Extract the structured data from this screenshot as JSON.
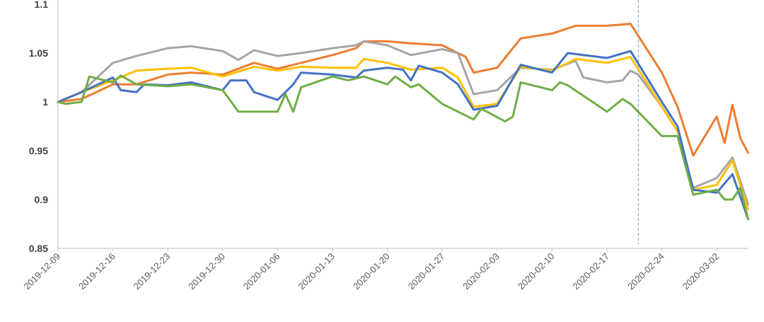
{
  "chart_data": {
    "type": "line",
    "title": "",
    "xlabel": "",
    "ylabel": "",
    "ylim": [
      0.85,
      1.1
    ],
    "y_ticks": [
      {
        "value": 1.1,
        "label": "1.1"
      },
      {
        "value": 1.05,
        "label": "1.05"
      },
      {
        "value": 1.0,
        "label": "1"
      },
      {
        "value": 0.95,
        "label": "0.95"
      },
      {
        "value": 0.9,
        "label": "0.9"
      },
      {
        "value": 0.85,
        "label": "0.85"
      }
    ],
    "x_tick_labels": [
      "2019-12-09",
      "2019-12-16",
      "2019-12-23",
      "2019-12-30",
      "2020-01-06",
      "2020-01-13",
      "2020-01-20",
      "2020-01-27",
      "2020-02-03",
      "2020-02-10",
      "2020-02-17",
      "2020-02-24",
      "2020-03-02"
    ],
    "vline_date": "2020-02-21",
    "grid": false,
    "legend": "none",
    "series": [
      {
        "color": "#ED7D31",
        "points": [
          [
            "2019-12-09",
            1.0
          ],
          [
            "2019-12-12",
            1.003
          ],
          [
            "2019-12-16",
            1.018
          ],
          [
            "2019-12-19",
            1.018
          ],
          [
            "2019-12-23",
            1.028
          ],
          [
            "2019-12-26",
            1.03
          ],
          [
            "2019-12-30",
            1.028
          ],
          [
            "2020-01-03",
            1.04
          ],
          [
            "2020-01-06",
            1.034
          ],
          [
            "2020-01-09",
            1.04
          ],
          [
            "2020-01-13",
            1.048
          ],
          [
            "2020-01-16",
            1.055
          ],
          [
            "2020-01-17",
            1.062
          ],
          [
            "2020-01-20",
            1.062
          ],
          [
            "2020-01-23",
            1.06
          ],
          [
            "2020-01-27",
            1.058
          ],
          [
            "2020-01-30",
            1.046
          ],
          [
            "2020-01-31",
            1.03
          ],
          [
            "2020-02-03",
            1.035
          ],
          [
            "2020-02-06",
            1.065
          ],
          [
            "2020-02-10",
            1.07
          ],
          [
            "2020-02-13",
            1.078
          ],
          [
            "2020-02-17",
            1.078
          ],
          [
            "2020-02-20",
            1.08
          ],
          [
            "2020-02-24",
            1.03
          ],
          [
            "2020-02-26",
            0.995
          ],
          [
            "2020-02-28",
            0.945
          ],
          [
            "2020-03-02",
            0.985
          ],
          [
            "2020-03-03",
            0.958
          ],
          [
            "2020-03-04",
            0.997
          ],
          [
            "2020-03-05",
            0.963
          ],
          [
            "2020-03-06",
            0.948
          ]
        ]
      },
      {
        "color": "#A5A5A5",
        "points": [
          [
            "2019-12-09",
            1.0
          ],
          [
            "2019-12-12",
            1.01
          ],
          [
            "2019-12-16",
            1.04
          ],
          [
            "2019-12-19",
            1.047
          ],
          [
            "2019-12-23",
            1.055
          ],
          [
            "2019-12-26",
            1.057
          ],
          [
            "2019-12-30",
            1.052
          ],
          [
            "2020-01-01",
            1.043
          ],
          [
            "2020-01-03",
            1.053
          ],
          [
            "2020-01-06",
            1.047
          ],
          [
            "2020-01-09",
            1.05
          ],
          [
            "2020-01-13",
            1.055
          ],
          [
            "2020-01-16",
            1.058
          ],
          [
            "2020-01-17",
            1.062
          ],
          [
            "2020-01-20",
            1.058
          ],
          [
            "2020-01-23",
            1.048
          ],
          [
            "2020-01-27",
            1.054
          ],
          [
            "2020-01-29",
            1.05
          ],
          [
            "2020-01-31",
            1.008
          ],
          [
            "2020-02-03",
            1.012
          ],
          [
            "2020-02-06",
            1.035
          ],
          [
            "2020-02-10",
            1.033
          ],
          [
            "2020-02-13",
            1.042
          ],
          [
            "2020-02-14",
            1.025
          ],
          [
            "2020-02-17",
            1.02
          ],
          [
            "2020-02-19",
            1.022
          ],
          [
            "2020-02-20",
            1.032
          ],
          [
            "2020-02-21",
            1.028
          ],
          [
            "2020-02-24",
            0.995
          ],
          [
            "2020-02-26",
            0.97
          ],
          [
            "2020-02-28",
            0.912
          ],
          [
            "2020-03-02",
            0.922
          ],
          [
            "2020-03-04",
            0.943
          ],
          [
            "2020-03-06",
            0.895
          ]
        ]
      },
      {
        "color": "#FFC000",
        "points": [
          [
            "2019-12-09",
            1.0
          ],
          [
            "2019-12-12",
            1.01
          ],
          [
            "2019-12-16",
            1.022
          ],
          [
            "2019-12-19",
            1.032
          ],
          [
            "2019-12-23",
            1.034
          ],
          [
            "2019-12-26",
            1.035
          ],
          [
            "2019-12-30",
            1.026
          ],
          [
            "2020-01-03",
            1.036
          ],
          [
            "2020-01-06",
            1.032
          ],
          [
            "2020-01-09",
            1.036
          ],
          [
            "2020-01-13",
            1.035
          ],
          [
            "2020-01-16",
            1.035
          ],
          [
            "2020-01-17",
            1.044
          ],
          [
            "2020-01-20",
            1.04
          ],
          [
            "2020-01-23",
            1.033
          ],
          [
            "2020-01-27",
            1.035
          ],
          [
            "2020-01-29",
            1.025
          ],
          [
            "2020-01-31",
            0.995
          ],
          [
            "2020-02-03",
            0.998
          ],
          [
            "2020-02-06",
            1.036
          ],
          [
            "2020-02-10",
            1.032
          ],
          [
            "2020-02-13",
            1.044
          ],
          [
            "2020-02-17",
            1.04
          ],
          [
            "2020-02-20",
            1.046
          ],
          [
            "2020-02-24",
            0.995
          ],
          [
            "2020-02-26",
            0.97
          ],
          [
            "2020-02-28",
            0.91
          ],
          [
            "2020-03-02",
            0.915
          ],
          [
            "2020-03-04",
            0.94
          ],
          [
            "2020-03-06",
            0.89
          ]
        ]
      },
      {
        "color": "#4472C4",
        "points": [
          [
            "2019-12-09",
            1.0
          ],
          [
            "2019-12-12",
            1.01
          ],
          [
            "2019-12-16",
            1.025
          ],
          [
            "2019-12-17",
            1.012
          ],
          [
            "2019-12-19",
            1.01
          ],
          [
            "2019-12-20",
            1.018
          ],
          [
            "2019-12-23",
            1.017
          ],
          [
            "2019-12-26",
            1.02
          ],
          [
            "2019-12-30",
            1.012
          ],
          [
            "2019-12-31",
            1.022
          ],
          [
            "2020-01-02",
            1.022
          ],
          [
            "2020-01-03",
            1.01
          ],
          [
            "2020-01-06",
            1.002
          ],
          [
            "2020-01-08",
            1.018
          ],
          [
            "2020-01-09",
            1.03
          ],
          [
            "2020-01-13",
            1.028
          ],
          [
            "2020-01-16",
            1.025
          ],
          [
            "2020-01-17",
            1.032
          ],
          [
            "2020-01-20",
            1.035
          ],
          [
            "2020-01-22",
            1.033
          ],
          [
            "2020-01-23",
            1.022
          ],
          [
            "2020-01-24",
            1.037
          ],
          [
            "2020-01-27",
            1.03
          ],
          [
            "2020-01-29",
            1.018
          ],
          [
            "2020-01-31",
            0.992
          ],
          [
            "2020-02-03",
            0.996
          ],
          [
            "2020-02-06",
            1.038
          ],
          [
            "2020-02-10",
            1.03
          ],
          [
            "2020-02-12",
            1.05
          ],
          [
            "2020-02-17",
            1.045
          ],
          [
            "2020-02-20",
            1.052
          ],
          [
            "2020-02-24",
            1.0
          ],
          [
            "2020-02-26",
            0.975
          ],
          [
            "2020-02-28",
            0.91
          ],
          [
            "2020-03-02",
            0.907
          ],
          [
            "2020-03-04",
            0.926
          ],
          [
            "2020-03-06",
            0.88
          ]
        ]
      },
      {
        "color": "#70AD47",
        "points": [
          [
            "2019-12-09",
            1.0
          ],
          [
            "2019-12-10",
            0.998
          ],
          [
            "2019-12-12",
            1.0
          ],
          [
            "2019-12-13",
            1.026
          ],
          [
            "2019-12-16",
            1.02
          ],
          [
            "2019-12-17",
            1.027
          ],
          [
            "2019-12-19",
            1.018
          ],
          [
            "2019-12-23",
            1.016
          ],
          [
            "2019-12-26",
            1.018
          ],
          [
            "2019-12-30",
            1.012
          ],
          [
            "2020-01-01",
            0.99
          ],
          [
            "2020-01-06",
            0.99
          ],
          [
            "2020-01-07",
            1.008
          ],
          [
            "2020-01-08",
            0.99
          ],
          [
            "2020-01-09",
            1.015
          ],
          [
            "2020-01-13",
            1.026
          ],
          [
            "2020-01-15",
            1.022
          ],
          [
            "2020-01-17",
            1.026
          ],
          [
            "2020-01-20",
            1.018
          ],
          [
            "2020-01-21",
            1.026
          ],
          [
            "2020-01-23",
            1.015
          ],
          [
            "2020-01-24",
            1.018
          ],
          [
            "2020-01-27",
            0.998
          ],
          [
            "2020-01-29",
            0.99
          ],
          [
            "2020-01-31",
            0.982
          ],
          [
            "2020-02-01",
            0.993
          ],
          [
            "2020-02-04",
            0.98
          ],
          [
            "2020-02-05",
            0.985
          ],
          [
            "2020-02-06",
            1.02
          ],
          [
            "2020-02-10",
            1.012
          ],
          [
            "2020-02-11",
            1.02
          ],
          [
            "2020-02-12",
            1.017
          ],
          [
            "2020-02-17",
            0.99
          ],
          [
            "2020-02-19",
            1.003
          ],
          [
            "2020-02-20",
            0.998
          ],
          [
            "2020-02-24",
            0.965
          ],
          [
            "2020-02-26",
            0.965
          ],
          [
            "2020-02-28",
            0.905
          ],
          [
            "2020-03-02",
            0.91
          ],
          [
            "2020-03-03",
            0.9
          ],
          [
            "2020-03-04",
            0.9
          ],
          [
            "2020-03-05",
            0.912
          ],
          [
            "2020-03-06",
            0.88
          ]
        ]
      }
    ]
  }
}
